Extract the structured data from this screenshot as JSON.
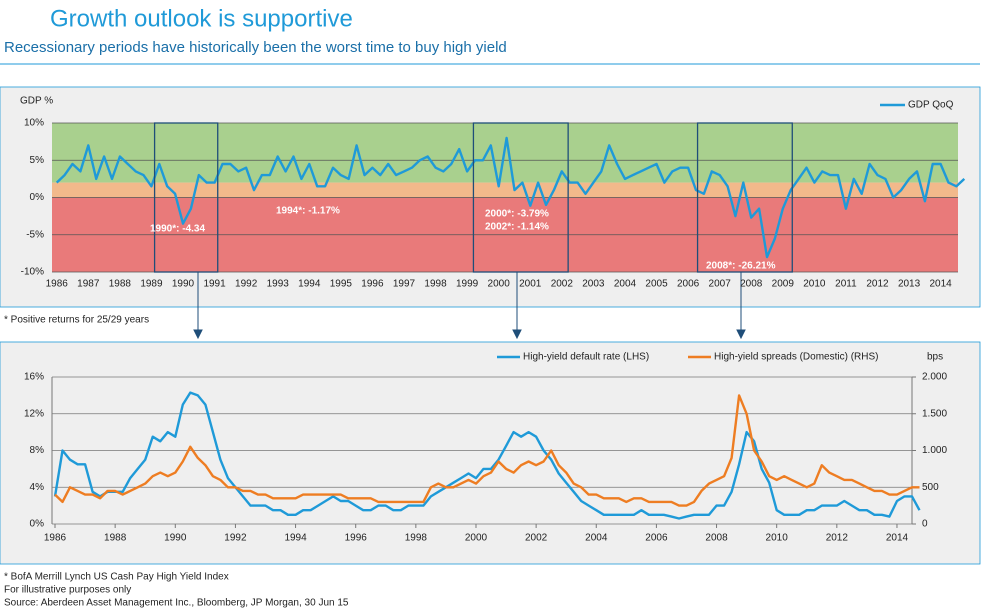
{
  "header": {
    "title": "Growth outlook is supportive",
    "subtitle": "Recessionary periods have historically been the worst time to buy high yield"
  },
  "chart_data": [
    {
      "type": "line",
      "y_label": "GDP %",
      "footnote": "* Positive returns for 25/29 years",
      "x": [
        1986,
        1986.25,
        1986.5,
        1986.75,
        1987,
        1987.25,
        1987.5,
        1987.75,
        1988,
        1988.25,
        1988.5,
        1988.75,
        1989,
        1989.25,
        1989.5,
        1989.75,
        1990,
        1990.25,
        1990.5,
        1990.75,
        1991,
        1991.25,
        1991.5,
        1991.75,
        1992,
        1992.25,
        1992.5,
        1992.75,
        1993,
        1993.25,
        1993.5,
        1993.75,
        1994,
        1994.25,
        1994.5,
        1994.75,
        1995,
        1995.25,
        1995.5,
        1995.75,
        1996,
        1996.25,
        1996.5,
        1996.75,
        1997,
        1997.25,
        1997.5,
        1997.75,
        1998,
        1998.25,
        1998.5,
        1998.75,
        1999,
        1999.25,
        1999.5,
        1999.75,
        2000,
        2000.25,
        2000.5,
        2000.75,
        2001,
        2001.25,
        2001.5,
        2001.75,
        2002,
        2002.25,
        2002.5,
        2002.75,
        2003,
        2003.25,
        2003.5,
        2003.75,
        2004,
        2004.25,
        2004.5,
        2004.75,
        2005,
        2005.25,
        2005.5,
        2005.75,
        2006,
        2006.25,
        2006.5,
        2006.75,
        2007,
        2007.25,
        2007.5,
        2007.75,
        2008,
        2008.25,
        2008.5,
        2008.75,
        2009,
        2009.25,
        2009.5,
        2009.75,
        2010,
        2010.25,
        2010.5,
        2010.75,
        2011,
        2011.25,
        2011.5,
        2011.75,
        2012,
        2012.25,
        2012.5,
        2012.75,
        2013,
        2013.25,
        2013.5,
        2013.75,
        2014,
        2014.25,
        2014.5,
        2014.75
      ],
      "series": [
        {
          "name": "GDP QoQ",
          "color": "#1f9ad8",
          "values": [
            2,
            3,
            4.5,
            3.5,
            7,
            2.5,
            5.5,
            2.5,
            5.5,
            4.5,
            3.5,
            3,
            1.5,
            4.5,
            1.5,
            0.5,
            -3.5,
            -1.5,
            3,
            2,
            2,
            4.5,
            4.5,
            3.5,
            4,
            1,
            3,
            3,
            5.5,
            3.5,
            5.5,
            2.5,
            4.5,
            1.5,
            1.5,
            4,
            3,
            2.5,
            7,
            3,
            4,
            3,
            4.5,
            3,
            3.5,
            4,
            5,
            5.5,
            4,
            3.5,
            4.5,
            6.5,
            3.5,
            5,
            5,
            7,
            1.5,
            8,
            1,
            2,
            -1.1,
            2,
            -1,
            1,
            3.5,
            2,
            2,
            0.5,
            2,
            3.5,
            7,
            4.5,
            2.5,
            3,
            3.5,
            4,
            4.5,
            2,
            3.5,
            4,
            4,
            1,
            0.5,
            3.5,
            3,
            1.5,
            -2.5,
            2,
            -2.7,
            -1.5,
            -8,
            -5.5,
            -1.5,
            1,
            2.5,
            4,
            2,
            3.5,
            3,
            3,
            -1.5,
            2.5,
            0.5,
            4.5,
            3,
            2.5,
            0,
            1,
            2.5,
            3.5,
            -0.5,
            4.5,
            4.5,
            2,
            1.5,
            2.5
          ]
        }
      ],
      "xlim": [
        1985.85,
        2014.55
      ],
      "xticks": [
        1986,
        1987,
        1988,
        1989,
        1990,
        1991,
        1992,
        1993,
        1994,
        1995,
        1996,
        1997,
        1998,
        1999,
        2000,
        2001,
        2002,
        2003,
        2004,
        2005,
        2006,
        2007,
        2008,
        2009,
        2010,
        2011,
        2012,
        2013,
        2014
      ],
      "ylim": [
        -10,
        10
      ],
      "yticks": [
        {
          "value": 10,
          "label": "10%"
        },
        {
          "value": 5,
          "label": "5%"
        },
        {
          "value": 0,
          "label": "0%"
        },
        {
          "value": -5,
          "label": "-5%"
        },
        {
          "value": -10,
          "label": "-10%"
        }
      ],
      "grid": true,
      "legend": "top-right",
      "bands": [
        {
          "from": 2,
          "to": 10,
          "color": "#a9d08e"
        },
        {
          "from": 0,
          "to": 2,
          "color": "#f2b98b"
        },
        {
          "from": -10,
          "to": 0,
          "color": "#e97a7a"
        }
      ],
      "highlights": [
        [
          1989.1,
          1991.1
        ],
        [
          1999.2,
          2002.2
        ],
        [
          2006.3,
          2009.3
        ]
      ],
      "annotations": [
        "1990*: -4.34",
        "1994*: -1.17%",
        "2000*: -3.79%",
        "2002*: -1.14%",
        "2008*: -26.21%"
      ]
    },
    {
      "type": "line",
      "y2_label": "bps",
      "x": [
        1986,
        1986.25,
        1986.5,
        1986.75,
        1987,
        1987.25,
        1987.5,
        1987.75,
        1988,
        1988.25,
        1988.5,
        1988.75,
        1989,
        1989.25,
        1989.5,
        1989.75,
        1990,
        1990.25,
        1990.5,
        1990.75,
        1991,
        1991.25,
        1991.5,
        1991.75,
        1992,
        1992.25,
        1992.5,
        1992.75,
        1993,
        1993.25,
        1993.5,
        1993.75,
        1994,
        1994.25,
        1994.5,
        1994.75,
        1995,
        1995.25,
        1995.5,
        1995.75,
        1996,
        1996.25,
        1996.5,
        1996.75,
        1997,
        1997.25,
        1997.5,
        1997.75,
        1998,
        1998.25,
        1998.5,
        1998.75,
        1999,
        1999.25,
        1999.5,
        1999.75,
        2000,
        2000.25,
        2000.5,
        2000.75,
        2001,
        2001.25,
        2001.5,
        2001.75,
        2002,
        2002.25,
        2002.5,
        2002.75,
        2003,
        2003.25,
        2003.5,
        2003.75,
        2004,
        2004.25,
        2004.5,
        2004.75,
        2005,
        2005.25,
        2005.5,
        2005.75,
        2006,
        2006.25,
        2006.5,
        2006.75,
        2007,
        2007.25,
        2007.5,
        2007.75,
        2008,
        2008.25,
        2008.5,
        2008.75,
        2009,
        2009.25,
        2009.5,
        2009.75,
        2010,
        2010.25,
        2010.5,
        2010.75,
        2011,
        2011.25,
        2011.5,
        2011.75,
        2012,
        2012.25,
        2012.5,
        2012.75,
        2013,
        2013.25,
        2013.5,
        2013.75,
        2014,
        2014.25,
        2014.5,
        2014.75
      ],
      "series": [
        {
          "name": "High-yield default rate (LHS)",
          "color": "#1f9ad8",
          "values": [
            3,
            8,
            7,
            6.5,
            6.5,
            3.5,
            3,
            3.5,
            3.5,
            3.5,
            5,
            6,
            7,
            9.5,
            9,
            10,
            9.5,
            13,
            14.3,
            14,
            13,
            10,
            7,
            5,
            4,
            3,
            2,
            2,
            2,
            1.5,
            1.5,
            1,
            1,
            1.5,
            1.5,
            2,
            2.5,
            3,
            2.5,
            2.5,
            2,
            1.5,
            1.5,
            2,
            2,
            1.5,
            1.5,
            2,
            2,
            2,
            3,
            3.5,
            4,
            4.5,
            5,
            5.5,
            5,
            6,
            6,
            7,
            8.5,
            10,
            9.5,
            10,
            9.5,
            8,
            7,
            5.5,
            4.5,
            3.5,
            2.5,
            2,
            1.5,
            1,
            1,
            1,
            1,
            1,
            1.5,
            1,
            1,
            1,
            0.8,
            0.6,
            0.8,
            1,
            1,
            1,
            2,
            2,
            3.5,
            6.5,
            10,
            9,
            6,
            4.5,
            1.5,
            1,
            1,
            1,
            1.5,
            1.5,
            2,
            2,
            2,
            2.5,
            2,
            1.5,
            1.5,
            1,
            1,
            0.8,
            2.5,
            3,
            3,
            1.5
          ]
        },
        {
          "name": "High-yield spreads (Domestic) (RHS)",
          "color": "#ee7d22",
          "axis": "y2",
          "values": [
            400,
            300,
            500,
            450,
            400,
            400,
            350,
            450,
            450,
            400,
            450,
            500,
            550,
            650,
            700,
            650,
            700,
            850,
            1050,
            900,
            800,
            650,
            600,
            500,
            500,
            450,
            450,
            400,
            400,
            350,
            350,
            350,
            350,
            400,
            400,
            400,
            400,
            400,
            400,
            350,
            350,
            350,
            350,
            300,
            300,
            300,
            300,
            300,
            300,
            300,
            500,
            550,
            500,
            500,
            550,
            600,
            550,
            650,
            700,
            850,
            750,
            700,
            800,
            850,
            800,
            850,
            1000,
            800,
            700,
            550,
            500,
            400,
            400,
            350,
            350,
            350,
            300,
            350,
            350,
            300,
            300,
            300,
            300,
            250,
            250,
            300,
            450,
            550,
            600,
            650,
            900,
            1750,
            1500,
            1000,
            850,
            650,
            600,
            650,
            600,
            550,
            500,
            550,
            800,
            700,
            650,
            600,
            600,
            550,
            500,
            450,
            450,
            400,
            400,
            450,
            500,
            500
          ]
        }
      ],
      "xlim": [
        1985.9,
        2014.5
      ],
      "xticks": [
        1986,
        1988,
        1990,
        1992,
        1994,
        1996,
        1998,
        2000,
        2002,
        2004,
        2006,
        2008,
        2010,
        2012,
        2014
      ],
      "ylim": [
        0,
        16
      ],
      "yticks": [
        {
          "value": 0,
          "label": "0%"
        },
        {
          "value": 4,
          "label": "4%"
        },
        {
          "value": 8,
          "label": "8%"
        },
        {
          "value": 12,
          "label": "12%"
        },
        {
          "value": 16,
          "label": "16%"
        }
      ],
      "y2lim": [
        0,
        2000
      ],
      "y2ticks": [
        0,
        500,
        {
          "value": 1000,
          "label": "1.000"
        },
        {
          "value": 1500,
          "label": "1.500"
        },
        {
          "value": 2000,
          "label": "2.000"
        }
      ],
      "grid": true,
      "legend": "top-right"
    }
  ],
  "footer": {
    "notes": [
      "* BofA Merrill Lynch US Cash Pay High Yield Index",
      "For illustrative purposes only",
      "Source: Aberdeen Asset Management Inc., Bloomberg, JP Morgan, 30 Jun 15"
    ]
  }
}
